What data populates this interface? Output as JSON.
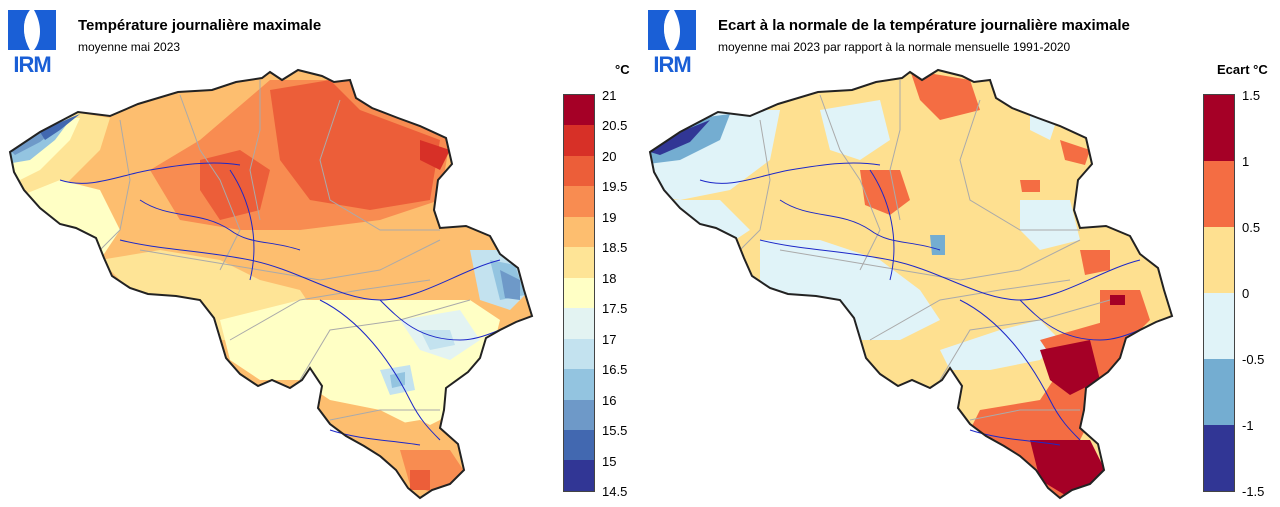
{
  "colors": {
    "logo_blue": "#1a5fd6",
    "border": "#222222",
    "admin_lines": "#aaaaaa",
    "rivers": "#1d28c8"
  },
  "left_map": {
    "logo_text": "IRM",
    "title": "Température journalière maximale",
    "subtitle": "moyenne mai 2023",
    "unit": "°C",
    "legend_colors": [
      "#a50026",
      "#d73027",
      "#ec5e39",
      "#f88c51",
      "#fdbe6f",
      "#fee496",
      "#ffffc5",
      "#e3f3f2",
      "#c3e2ef",
      "#93c4e0",
      "#6e99c8",
      "#4268b0",
      "#313695"
    ],
    "legend_ticks": [
      "21",
      "20.5",
      "20",
      "19.5",
      "19",
      "18.5",
      "18",
      "17.5",
      "17",
      "16.5",
      "16",
      "15.5",
      "15",
      "14.5"
    ]
  },
  "right_map": {
    "logo_text": "IRM",
    "title": "Ecart à la normale de la température journalière maximale",
    "subtitle": "moyenne mai 2023 par rapport à la normale mensuelle 1991-2020",
    "unit": "Ecart °C",
    "legend_colors": [
      "#a50026",
      "#f46d43",
      "#fee090",
      "#e0f3f8",
      "#74add1",
      "#313695"
    ],
    "legend_ticks": [
      "1.5",
      "1",
      "0.5",
      "0",
      "-0.5",
      "-1",
      "-1.5"
    ]
  }
}
